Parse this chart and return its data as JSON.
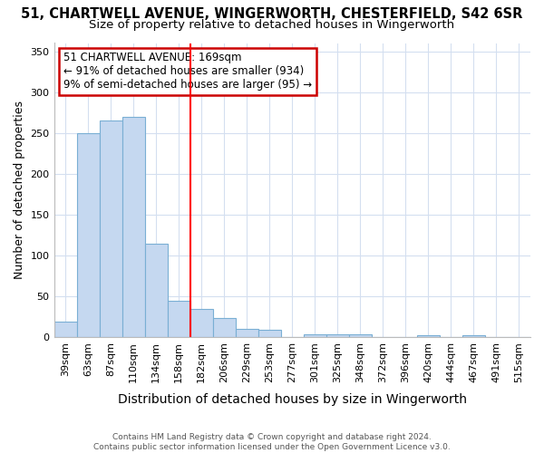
{
  "title": "51, CHARTWELL AVENUE, WINGERWORTH, CHESTERFIELD, S42 6SR",
  "subtitle": "Size of property relative to detached houses in Wingerworth",
  "xlabel": "Distribution of detached houses by size in Wingerworth",
  "ylabel": "Number of detached properties",
  "categories": [
    "39sqm",
    "63sqm",
    "87sqm",
    "110sqm",
    "134sqm",
    "158sqm",
    "182sqm",
    "206sqm",
    "229sqm",
    "253sqm",
    "277sqm",
    "301sqm",
    "325sqm",
    "348sqm",
    "372sqm",
    "396sqm",
    "420sqm",
    "444sqm",
    "467sqm",
    "491sqm",
    "515sqm"
  ],
  "values": [
    19,
    250,
    265,
    270,
    115,
    45,
    35,
    24,
    10,
    9,
    0,
    4,
    4,
    4,
    0,
    0,
    3,
    0,
    3,
    0,
    0
  ],
  "bar_color": "#c5d8f0",
  "bar_edge_color": "#7aafd4",
  "red_line_x": 6.0,
  "annotation_text": "51 CHARTWELL AVENUE: 169sqm\n← 91% of detached houses are smaller (934)\n9% of semi-detached houses are larger (95) →",
  "annotation_box_color": "#ffffff",
  "annotation_box_edge_color": "#cc0000",
  "ylim": [
    0,
    360
  ],
  "yticks": [
    0,
    50,
    100,
    150,
    200,
    250,
    300,
    350
  ],
  "footer": "Contains HM Land Registry data © Crown copyright and database right 2024.\nContains public sector information licensed under the Open Government Licence v3.0.",
  "bg_color": "#ffffff",
  "grid_color": "#d4dff0",
  "title_fontsize": 10.5,
  "subtitle_fontsize": 9.5,
  "xlabel_fontsize": 10,
  "ylabel_fontsize": 9,
  "tick_fontsize": 8,
  "footer_fontsize": 6.5,
  "annot_fontsize": 8.5
}
